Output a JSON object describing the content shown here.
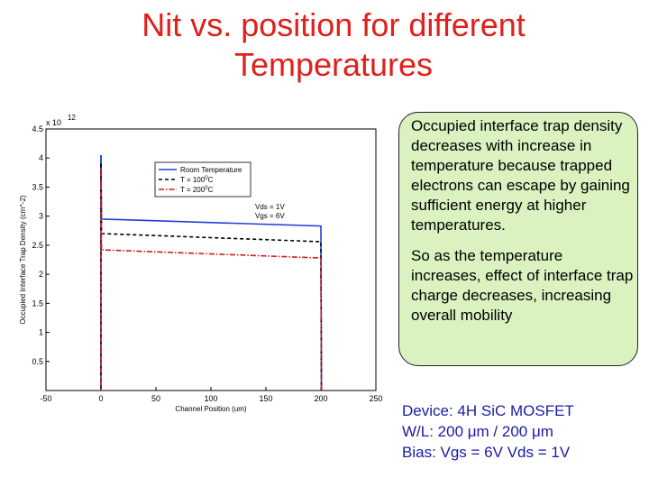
{
  "slide": {
    "title_line1": "Nit vs. position for different",
    "title_line2": "Temperatures",
    "note_paragraph1": "Occupied interface trap density decreases with increase in temperature because trapped electrons can escape by gaining sufficient energy at higher temperatures.",
    "note_paragraph2": "So as the temperature increases, effect of interface trap charge decreases, increasing overall mobility",
    "device_line1": "Device: 4H SiC MOSFET",
    "device_line2": "W/L: 200 μm / 200 μm",
    "device_line3": "Bias: Vgs = 6V Vds = 1V",
    "title_color": "#e0201b",
    "device_color": "#1a1aa6",
    "note_bg_color": "#d9f2c0"
  },
  "chart_data": {
    "type": "line",
    "title": "",
    "xlabel": "Channel Position (um)",
    "ylabel": "Occupied Interface Trap Density (cm^-2)",
    "y_exponent_label": "x 10",
    "y_exponent_power": "12",
    "xlim": [
      -50,
      250
    ],
    "ylim": [
      0,
      4.5
    ],
    "x_ticks": [
      -50,
      0,
      50,
      100,
      150,
      200,
      250
    ],
    "y_ticks": [
      0.5,
      1,
      1.5,
      2,
      2.5,
      3,
      3.5,
      4,
      4.5
    ],
    "annotation_line1": "Vds = 1V",
    "annotation_line2": "Vgs = 6V",
    "legend_position": "top-left",
    "series": [
      {
        "name": "Room Temperature",
        "style": "solid",
        "color": "#1f3fd6",
        "x": [
          0,
          0.5,
          200,
          200.5
        ],
        "y": [
          4.05,
          2.95,
          2.83,
          0
        ],
        "legend_sup": ""
      },
      {
        "name": "T = 100",
        "legend_sup": "0",
        "legend_suffix": "C",
        "style": "dashed",
        "color": "#000000",
        "x": [
          0,
          0.5,
          200,
          200.5
        ],
        "y": [
          3.9,
          2.7,
          2.56,
          0
        ]
      },
      {
        "name": "T = 200",
        "legend_sup": "0",
        "legend_suffix": "C",
        "style": "dashdot",
        "color": "#d11a1a",
        "x": [
          0,
          0.5,
          200,
          200.5
        ],
        "y": [
          3.78,
          2.42,
          2.28,
          0
        ]
      }
    ]
  }
}
